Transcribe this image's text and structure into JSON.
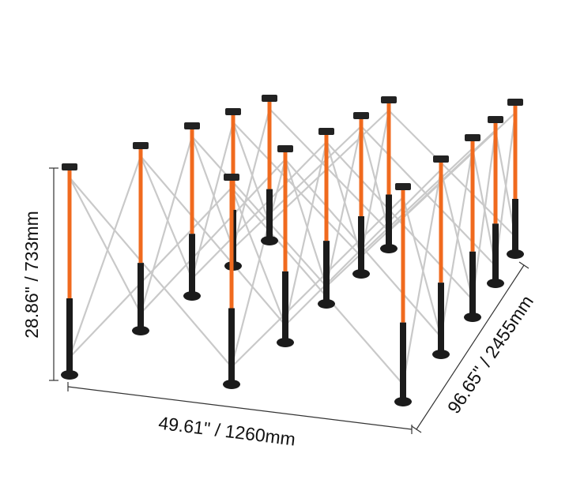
{
  "dimensions": {
    "height": "28.86\" / 733mm",
    "width": "49.61\" / 1260mm",
    "length": "96.65\" / 2455mm"
  }
}
